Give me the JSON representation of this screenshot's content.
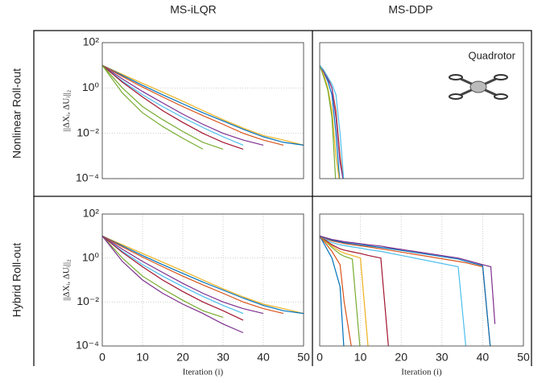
{
  "column_titles": [
    "MS-iLQR",
    "MS-DDP"
  ],
  "row_titles": [
    "Nonlinear Roll-out",
    "Hybrid Roll-out"
  ],
  "chart_data": [
    {
      "type": "line",
      "log_y": true,
      "grid": true,
      "ylabel": "||ΔXᵢ, ΔUᵢ||₂",
      "xlim": [
        0,
        50
      ],
      "ylim": [
        0.0001,
        100
      ],
      "yticks": [
        {
          "value": 100,
          "label": "10²"
        },
        {
          "value": 1,
          "label": "10⁰"
        },
        {
          "value": 0.01,
          "label": "10⁻²"
        },
        {
          "value": 0.0001,
          "label": "10⁻⁴"
        }
      ],
      "x": [
        0,
        5,
        10,
        15,
        20,
        25,
        30,
        35,
        40,
        45,
        50
      ],
      "series": [
        {
          "color": "#EDB120",
          "values": [
            10,
            4,
            1.6,
            0.65,
            0.26,
            0.1,
            0.04,
            0.017,
            0.008,
            0.005,
            0.003
          ]
        },
        {
          "color": "#0072BD",
          "values": [
            10,
            3.6,
            1.3,
            0.5,
            0.2,
            0.08,
            0.035,
            0.015,
            0.007,
            0.004,
            0.003
          ]
        },
        {
          "color": "#D95319",
          "values": [
            10,
            3.2,
            1.1,
            0.4,
            0.15,
            0.06,
            0.025,
            0.01,
            0.005,
            0.003,
            null
          ]
        },
        {
          "color": "#7E2F8E",
          "values": [
            10,
            2.5,
            0.7,
            0.22,
            0.07,
            0.025,
            0.01,
            0.005,
            0.003,
            null,
            null
          ]
        },
        {
          "color": "#4DBEEE",
          "values": [
            10,
            2,
            0.5,
            0.15,
            0.05,
            0.018,
            0.007,
            0.003,
            null,
            null,
            null
          ]
        },
        {
          "color": "#A2142F",
          "values": [
            10,
            1.8,
            0.4,
            0.1,
            0.03,
            0.01,
            0.004,
            0.002,
            null,
            null,
            null
          ]
        },
        {
          "color": "#77AC30",
          "values": [
            10,
            1,
            0.15,
            0.04,
            0.012,
            0.004,
            0.002,
            null,
            null,
            null,
            null
          ]
        },
        {
          "color": "#77AC30",
          "values": [
            10,
            0.6,
            0.08,
            0.02,
            0.006,
            0.002,
            null,
            null,
            null,
            null,
            null
          ]
        }
      ]
    },
    {
      "type": "line",
      "log_y": true,
      "grid": true,
      "annotation": "Quadrotor",
      "xlim": [
        0,
        50
      ],
      "ylim": [
        0.0001,
        100
      ],
      "x": [
        0,
        1,
        2,
        3,
        4,
        5,
        6
      ],
      "series": [
        {
          "color": "#0072BD",
          "values": [
            10,
            5,
            2,
            0.5,
            0.01,
            5e-05,
            null
          ]
        },
        {
          "color": "#D95319",
          "values": [
            10,
            6,
            3,
            1,
            0.1,
            0.001,
            5e-05
          ]
        },
        {
          "color": "#EDB120",
          "values": [
            10,
            4,
            1,
            0.1,
            0.001,
            5e-05,
            null
          ]
        },
        {
          "color": "#7E2F8E",
          "values": [
            10,
            5,
            2.5,
            1,
            0.05,
            0.0005,
            5e-05
          ]
        },
        {
          "color": "#77AC30",
          "values": [
            10,
            3,
            0.8,
            0.05,
            5e-05,
            null,
            null
          ]
        },
        {
          "color": "#4DBEEE",
          "values": [
            10,
            6,
            3,
            1.5,
            0.5,
            0.01,
            5e-05
          ]
        }
      ]
    },
    {
      "type": "line",
      "log_y": true,
      "grid": true,
      "ylabel": "||ΔXᵢ, ΔUᵢ||₂",
      "xlabel": "Iteration (i)",
      "xlim": [
        0,
        50
      ],
      "ylim": [
        0.0001,
        100
      ],
      "yticks": [
        {
          "value": 100,
          "label": "10²"
        },
        {
          "value": 1,
          "label": "10⁰"
        },
        {
          "value": 0.01,
          "label": "10⁻²"
        },
        {
          "value": 0.0001,
          "label": "10⁻⁴"
        }
      ],
      "xticks": [
        0,
        10,
        20,
        30,
        40,
        50
      ],
      "x": [
        0,
        5,
        10,
        15,
        20,
        25,
        30,
        35,
        40,
        45,
        50
      ],
      "series": [
        {
          "color": "#EDB120",
          "values": [
            10,
            4,
            1.6,
            0.65,
            0.26,
            0.1,
            0.04,
            0.017,
            0.008,
            0.005,
            0.003
          ]
        },
        {
          "color": "#0072BD",
          "values": [
            10,
            3.6,
            1.3,
            0.5,
            0.2,
            0.08,
            0.035,
            0.015,
            0.007,
            0.004,
            0.003
          ]
        },
        {
          "color": "#D95319",
          "values": [
            10,
            3.2,
            1.1,
            0.4,
            0.15,
            0.06,
            0.025,
            0.01,
            0.005,
            0.003,
            null
          ]
        },
        {
          "color": "#7E2F8E",
          "values": [
            10,
            2.5,
            0.7,
            0.22,
            0.07,
            0.025,
            0.01,
            0.005,
            0.003,
            null,
            null
          ]
        },
        {
          "color": "#4DBEEE",
          "values": [
            10,
            2,
            0.5,
            0.15,
            0.05,
            0.018,
            0.007,
            0.003,
            null,
            null,
            null
          ]
        },
        {
          "color": "#A2142F",
          "values": [
            10,
            1.8,
            0.4,
            0.1,
            0.03,
            0.01,
            0.004,
            0.0015,
            null,
            null,
            null
          ]
        },
        {
          "color": "#77AC30",
          "values": [
            10,
            1,
            0.15,
            0.04,
            0.012,
            0.004,
            0.002,
            null,
            null,
            null,
            null
          ]
        },
        {
          "color": "#7E2F8E",
          "values": [
            10,
            0.7,
            0.1,
            0.025,
            0.008,
            0.003,
            0.001,
            0.0004,
            null,
            null,
            null
          ]
        }
      ]
    },
    {
      "type": "line",
      "log_y": true,
      "grid": true,
      "xlabel": "Iteration (i)",
      "xlim": [
        0,
        50
      ],
      "ylim": [
        0.0001,
        100
      ],
      "xticks": [
        0,
        10,
        20,
        30,
        40,
        50
      ],
      "x": [
        0,
        3,
        5,
        6,
        8,
        10,
        12,
        15,
        17,
        34,
        36,
        40,
        42,
        43
      ],
      "series": [
        {
          "color": "#0072BD",
          "values": [
            10,
            1,
            0.05,
            5e-05,
            null,
            null,
            null,
            null,
            null,
            null,
            null,
            null,
            null,
            null
          ]
        },
        {
          "color": "#D95319",
          "values": [
            10,
            2,
            0.5,
            0.01,
            5e-05,
            null,
            null,
            null,
            null,
            null,
            null,
            null,
            null,
            null
          ]
        },
        {
          "color": "#77AC30",
          "values": [
            10,
            3,
            1.5,
            1.2,
            0.9,
            5e-05,
            null,
            null,
            null,
            null,
            null,
            null,
            null,
            null
          ]
        },
        {
          "color": "#EDB120",
          "values": [
            10,
            3.5,
            2,
            1.7,
            1.3,
            1,
            5e-05,
            null,
            null,
            null,
            null,
            null,
            null,
            null
          ]
        },
        {
          "color": "#A2142F",
          "values": [
            10,
            4,
            2.6,
            2.3,
            1.9,
            1.6,
            1.3,
            1.0,
            5e-05,
            null,
            null,
            null,
            null,
            null
          ]
        },
        {
          "color": "#4DBEEE",
          "values": [
            10,
            5,
            4,
            3.7,
            3.2,
            2.8,
            2.4,
            2,
            1.7,
            0.4,
            5e-05,
            null,
            null,
            null
          ]
        },
        {
          "color": "#D95319",
          "values": [
            10,
            6,
            5,
            4.6,
            4,
            3.6,
            3.2,
            2.6,
            2.3,
            0.7,
            0.6,
            0.4,
            5e-05,
            null
          ]
        },
        {
          "color": "#0072BD",
          "values": [
            10,
            6.5,
            5.5,
            5,
            4.5,
            4,
            3.6,
            3,
            2.7,
            0.9,
            0.7,
            0.45,
            5e-05,
            null
          ]
        },
        {
          "color": "#7E2F8E",
          "values": [
            10,
            7,
            6,
            5.5,
            5,
            4.5,
            4,
            3.5,
            3,
            1,
            0.8,
            0.5,
            0.4,
            0.001
          ]
        }
      ]
    }
  ]
}
